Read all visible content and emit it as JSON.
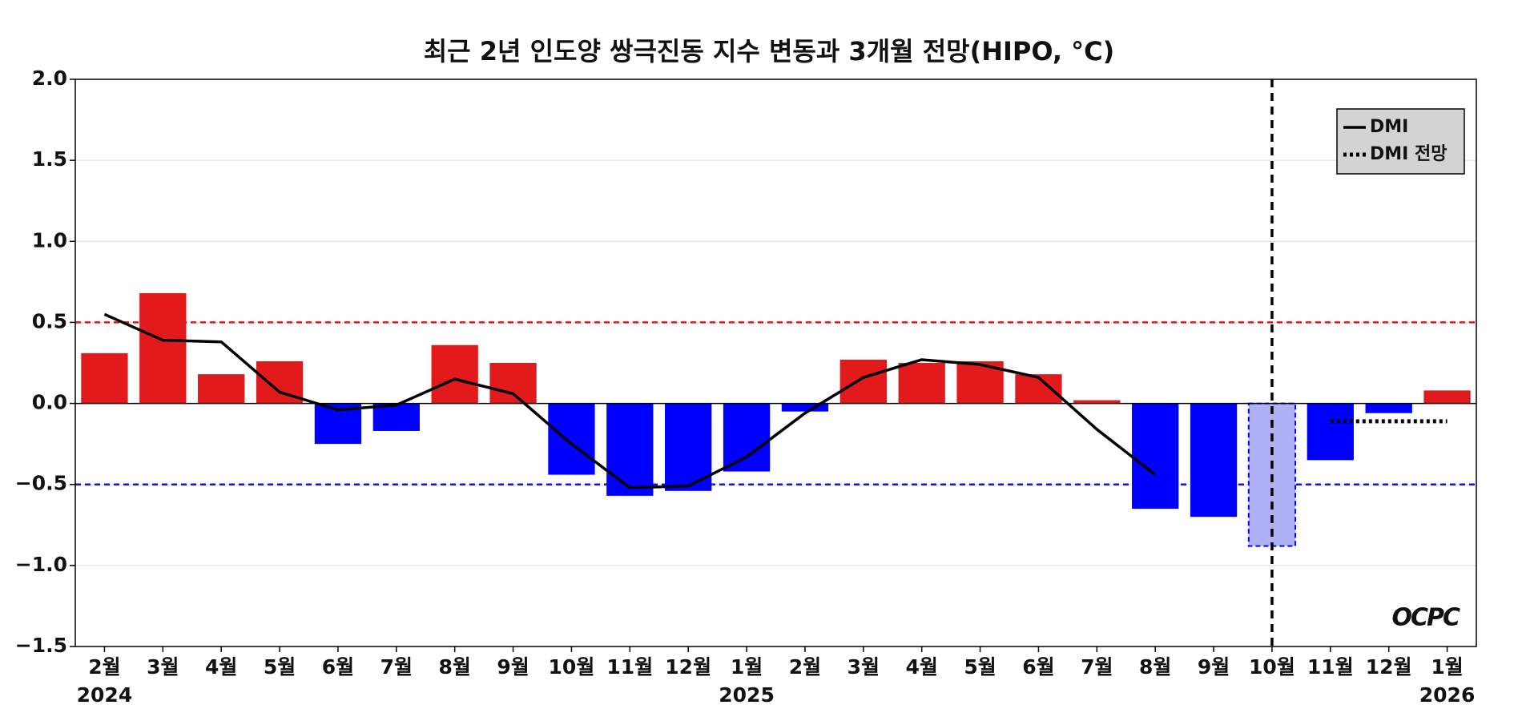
{
  "chart_data": {
    "type": "bar",
    "title": "최근 2년 인도양 쌍극진동 지수 변동과 3개월 전망(HIPO, °C)",
    "categories": [
      "2월",
      "3월",
      "4월",
      "5월",
      "6월",
      "7월",
      "8월",
      "9월",
      "10월",
      "11월",
      "12월",
      "1월",
      "2월",
      "3월",
      "4월",
      "5월",
      "6월",
      "7월",
      "8월",
      "9월",
      "10월",
      "11월",
      "12월",
      "1월"
    ],
    "years": [
      "2024",
      null,
      null,
      null,
      null,
      null,
      null,
      null,
      null,
      null,
      null,
      "2025",
      null,
      null,
      null,
      null,
      null,
      null,
      null,
      null,
      null,
      null,
      null,
      "2026"
    ],
    "values": [
      0.31,
      0.68,
      0.18,
      0.26,
      -0.25,
      -0.17,
      0.36,
      0.25,
      -0.44,
      -0.57,
      -0.54,
      -0.42,
      -0.05,
      0.27,
      0.25,
      0.26,
      0.18,
      0.02,
      -0.65,
      -0.7,
      -0.88,
      -0.35,
      -0.06,
      0.08
    ],
    "positive_color": "#e31a1c",
    "negative_color": "#0000ff",
    "forecast_color": "#b0b0f5",
    "forecast_index": 20,
    "lines": [
      {
        "name": "DMI",
        "color": "#000000",
        "style": "solid",
        "values": [
          0.55,
          0.39,
          0.38,
          0.07,
          -0.04,
          -0.01,
          0.15,
          0.06,
          -0.25,
          -0.52,
          -0.51,
          -0.33,
          -0.06,
          0.16,
          0.27,
          0.24,
          0.16,
          -0.16,
          -0.44,
          null,
          null,
          null,
          null,
          null
        ]
      },
      {
        "name": "DMI 전망",
        "color": "#000000",
        "style": "dotted",
        "values": [
          null,
          null,
          null,
          null,
          null,
          null,
          null,
          null,
          null,
          null,
          null,
          null,
          null,
          null,
          null,
          null,
          null,
          null,
          null,
          null,
          null,
          -0.11,
          -0.11,
          -0.11
        ]
      }
    ],
    "thresholds": [
      {
        "value": 0.5,
        "color": "#ee1111"
      },
      {
        "value": -0.5,
        "color": "#1111ee"
      }
    ],
    "ylim": [
      -1.5,
      2.0
    ],
    "yticks": [
      {
        "value": -1.5,
        "label": "−1.5"
      },
      {
        "value": -1.0,
        "label": "−1.0"
      },
      {
        "value": -0.5,
        "label": "−0.5"
      },
      {
        "value": 0,
        "label": "0.0"
      },
      0.5,
      {
        "value": 1.0,
        "label": "1.0"
      },
      1.5,
      {
        "value": 2.0,
        "label": "2.0"
      }
    ],
    "grid": true,
    "legend": "upper right",
    "logo": "OCPC"
  }
}
